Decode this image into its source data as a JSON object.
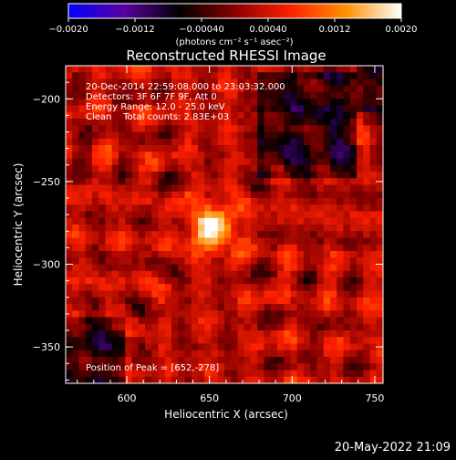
{
  "chart_data": {
    "type": "heatmap",
    "title": "Reconstructed RHESSI Image",
    "xlabel": "Heliocentric X (arcsec)",
    "ylabel": "Heliocentric Y (arcsec)",
    "xlim": [
      563,
      755
    ],
    "ylim": [
      -372,
      -180
    ],
    "xticks": [
      {
        "value": 600,
        "label": "600"
      },
      {
        "value": 650,
        "label": "650"
      },
      {
        "value": 700,
        "label": "700"
      },
      {
        "value": 750,
        "label": "750"
      }
    ],
    "yticks": [
      {
        "value": -200,
        "label": "−200"
      },
      {
        "value": -250,
        "label": "−250"
      },
      {
        "value": -300,
        "label": "−300"
      },
      {
        "value": -350,
        "label": "−350"
      }
    ],
    "annotations": [
      "20-Dec-2014 22:59:08.000 to 23:03:32.000",
      "Detectors: 3F 6F 7F 9F, Att 0",
      "Energy Range: 12.0 - 25.0 keV",
      "Clean    Total counts: 2.83E+03"
    ],
    "peak_label": "Position of Peak = [652,-278]",
    "peak": {
      "x": 652,
      "y": -278
    },
    "colorbar": {
      "min": -0.002,
      "max": 0.002,
      "ticks": [
        {
          "value": -0.002,
          "label": "−0.0020"
        },
        {
          "value": -0.0012,
          "label": "−0.0012"
        },
        {
          "value": -0.0004,
          "label": "−0.00040"
        },
        {
          "value": 0.0004,
          "label": "0.00040"
        },
        {
          "value": 0.0012,
          "label": "0.0012"
        },
        {
          "value": 0.002,
          "label": "0.0020"
        }
      ],
      "unit_label": "(photons cm⁻² s⁻¹ asec⁻²)"
    },
    "colors": {
      "colormap": [
        "#0000ff",
        "#5a00a0",
        "#000000",
        "#8a0000",
        "#ff2000",
        "#ff9000",
        "#ffffff"
      ],
      "background": "#000000",
      "foreground": "#ffffff"
    }
  },
  "footer": {
    "date_stamp": "20-May-2022 21:09"
  }
}
